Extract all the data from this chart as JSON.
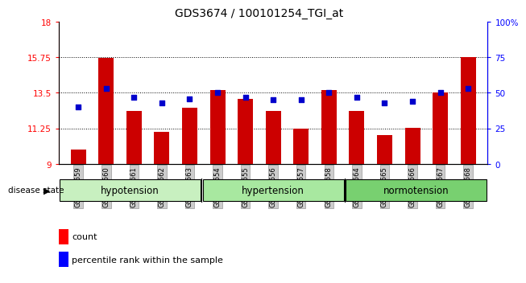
{
  "title": "GDS3674 / 100101254_TGI_at",
  "samples": [
    "GSM493559",
    "GSM493560",
    "GSM493561",
    "GSM493562",
    "GSM493563",
    "GSM493554",
    "GSM493555",
    "GSM493556",
    "GSM493557",
    "GSM493558",
    "GSM493564",
    "GSM493565",
    "GSM493566",
    "GSM493567",
    "GSM493568"
  ],
  "bar_values": [
    9.9,
    15.7,
    12.35,
    11.05,
    12.55,
    13.65,
    13.1,
    12.35,
    11.25,
    13.65,
    12.35,
    10.85,
    11.3,
    13.5,
    15.75
  ],
  "dot_values": [
    40,
    53,
    47,
    43,
    46,
    50,
    47,
    45,
    45,
    50,
    47,
    43,
    44,
    50,
    53
  ],
  "ylim": [
    9,
    18
  ],
  "y_ticks": [
    9,
    11.25,
    13.5,
    15.75,
    18
  ],
  "y2_ticks": [
    0,
    25,
    50,
    75,
    100
  ],
  "y2_tick_labels": [
    "0",
    "25",
    "50",
    "75",
    "100%"
  ],
  "bar_color": "#cc0000",
  "dot_color": "#0000cc",
  "bar_bottom": 9,
  "dotted_line_y": [
    11.25,
    13.5,
    15.75
  ],
  "legend_count_label": "count",
  "legend_pct_label": "percentile rank within the sample",
  "disease_state_label": "disease state",
  "groups": [
    {
      "label": "hypotension",
      "start": 0,
      "end": 5,
      "color": "#c8f0c0"
    },
    {
      "label": "hypertension",
      "start": 5,
      "end": 10,
      "color": "#a8e8a0"
    },
    {
      "label": "normotension",
      "start": 10,
      "end": 15,
      "color": "#78d070"
    }
  ]
}
